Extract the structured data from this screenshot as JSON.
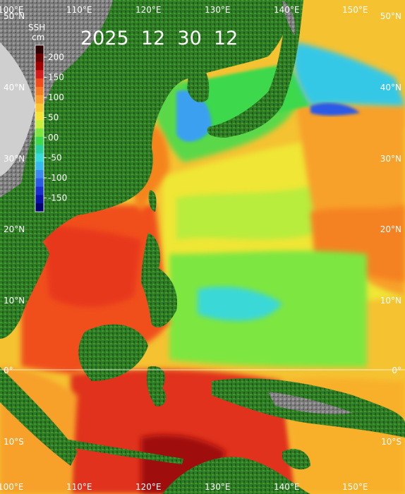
{
  "map": {
    "date_label": "2025  12  30  12",
    "variable": "SSH",
    "unit": "cm",
    "lon_labels": [
      "100°E",
      "110°E",
      "120°E",
      "130°E",
      "140°E",
      "150°E"
    ],
    "lat_labels_left": [
      "50°N",
      "40°N",
      "30°N",
      "20°N",
      "10°N",
      "0°",
      "10°S"
    ],
    "lat_labels_right": [
      "50°N",
      "40°N",
      "30°N",
      "20°N",
      "10°N",
      "0°",
      "10°S"
    ],
    "colorbar": {
      "ticks": [
        "200",
        "150",
        "100",
        "50",
        "00",
        "-50",
        "-100",
        "-150"
      ],
      "colors": [
        "#2a0000",
        "#6a0000",
        "#a00000",
        "#d21a1a",
        "#f04a1a",
        "#f77a22",
        "#f9a12a",
        "#fbc832",
        "#f5e636",
        "#c8f03a",
        "#7ee640",
        "#3ed84c",
        "#2ad0a0",
        "#36dcdc",
        "#36b8f0",
        "#3a88f0",
        "#2a5ae6",
        "#1a2ed0",
        "#0a10a8",
        "#050070"
      ]
    },
    "colors": {
      "ocean_warm": "#f05a1e",
      "ocean_hot": "#c81414",
      "ocean_orange": "#f79a28",
      "ocean_yellow": "#f3e032",
      "ocean_lightgreen": "#b4ec3c",
      "ocean_green": "#5ad848",
      "ocean_cyan": "#3ad8d8",
      "ocean_blue": "#3aa0f0",
      "land_green": "#2e7d22",
      "land_gray": "#8a8a8a"
    }
  }
}
